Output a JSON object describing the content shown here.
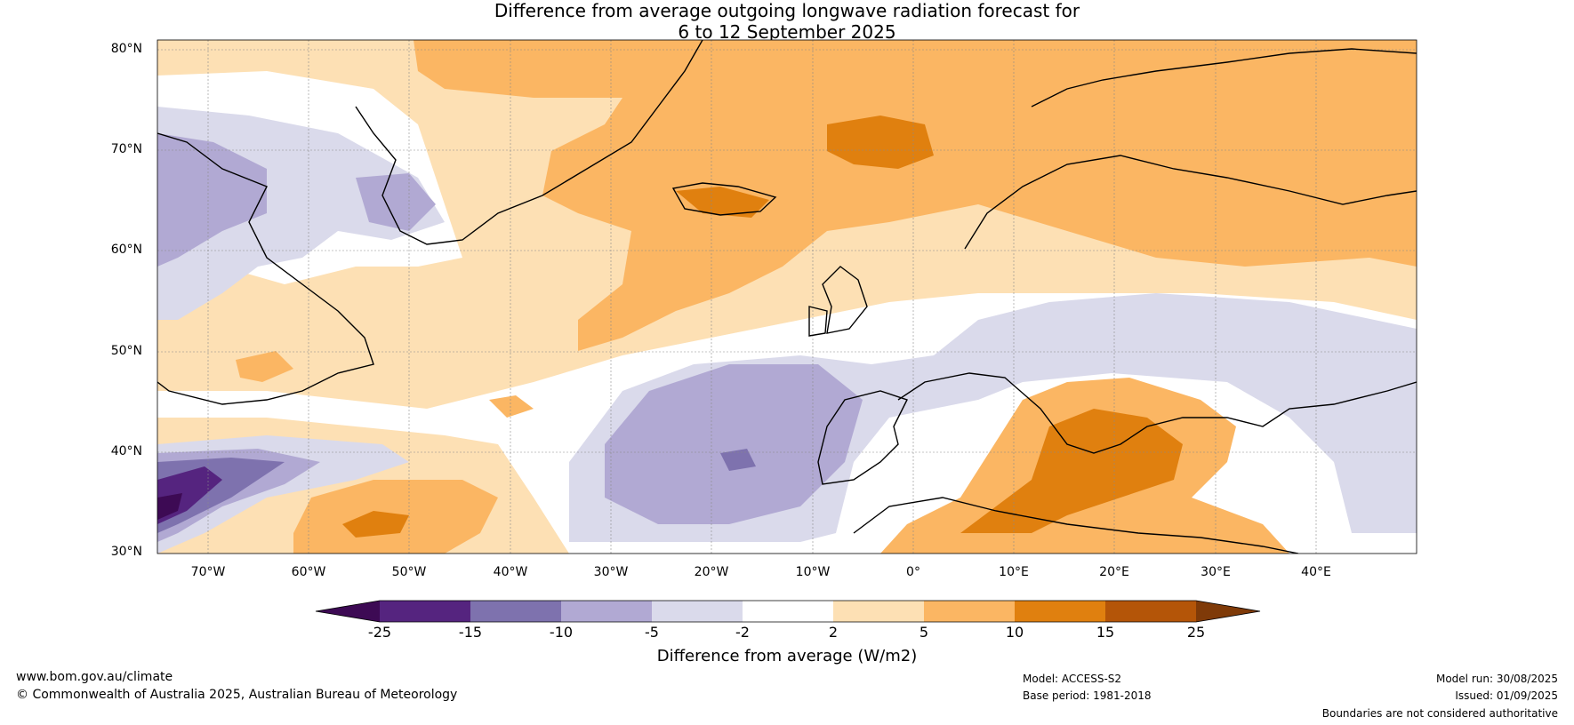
{
  "title": {
    "line1": "Difference from average outgoing longwave radiation forecast for",
    "line2": "6 to 12 September 2025"
  },
  "map": {
    "lat_labels": [
      "80°N",
      "70°N",
      "60°N",
      "50°N",
      "40°N",
      "30°N"
    ],
    "lon_labels": [
      "70°W",
      "60°W",
      "50°W",
      "40°W",
      "30°W",
      "20°W",
      "10°W",
      "0°",
      "10°E",
      "20°E",
      "30°E",
      "40°E"
    ],
    "extent": {
      "lon": [
        -75,
        50
      ],
      "lat": [
        30,
        81
      ]
    }
  },
  "colorbar": {
    "tick_labels": [
      "-25",
      "-15",
      "-10",
      "-5",
      "-2",
      "2",
      "5",
      "10",
      "15",
      "25"
    ],
    "colors": [
      "#3d0a54",
      "#55247f",
      "#7e72ae",
      "#b1a9d3",
      "#dadaeb",
      "#ffffff",
      "#fde0b4",
      "#fbb663",
      "#e0800f",
      "#b45508",
      "#7f3a08"
    ],
    "label": "Difference from average (W/m2)"
  },
  "footer": {
    "website": "www.bom.gov.au/climate",
    "copyright": "© Commonwealth of Australia 2025, Australian Bureau of Meteorology",
    "model": "Model: ACCESS-S2",
    "base_period": "Base period: 1981-2018",
    "model_run": "Model run: 30/08/2025",
    "issued": "Issued: 01/09/2025",
    "disclaimer": "Boundaries are not considered authoritative"
  }
}
